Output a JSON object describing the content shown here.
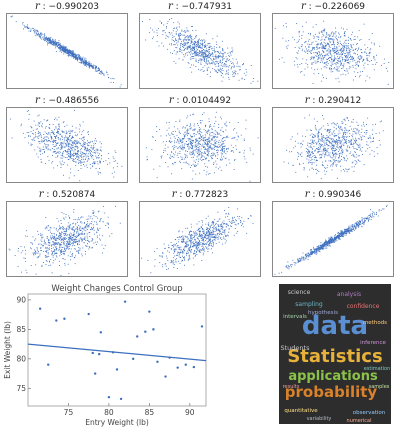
{
  "correlation_grid": {
    "label_symbol": "r",
    "label_sep": " : ",
    "panels": [
      {
        "r": "-0.990203",
        "slope": -0.99
      },
      {
        "r": "-0.747931",
        "slope": -0.75
      },
      {
        "r": "-0.226069",
        "slope": -0.23
      },
      {
        "r": "-0.486556",
        "slope": -0.49
      },
      {
        "r": "0.0104492",
        "slope": 0.01
      },
      {
        "r": "0.290412",
        "slope": 0.29
      },
      {
        "r": "0.520874",
        "slope": 0.52
      },
      {
        "r": "0.772823",
        "slope": 0.77
      },
      {
        "r": "0.990346",
        "slope": 0.99
      }
    ],
    "point_color": "#3d6fbf"
  },
  "chart_data": {
    "type": "scatter",
    "title": "Weight Changes Control Group",
    "xlabel": "Entry Weight (lb)",
    "ylabel": "Exit Weight (lb)",
    "xlim": [
      70,
      92
    ],
    "ylim": [
      72,
      91
    ],
    "xticks": [
      "75",
      "80",
      "85",
      "90"
    ],
    "yticks": [
      "75",
      "80",
      "85",
      "90"
    ],
    "points": [
      [
        71.5,
        88.5
      ],
      [
        73.5,
        86.5
      ],
      [
        74.5,
        86.8
      ],
      [
        77.5,
        87.6
      ],
      [
        78.0,
        81.0
      ],
      [
        78.3,
        77.5
      ],
      [
        78.8,
        80.8
      ],
      [
        79.0,
        84.5
      ],
      [
        80.0,
        73.5
      ],
      [
        80.5,
        81.1
      ],
      [
        81.0,
        78.2
      ],
      [
        81.5,
        73.2
      ],
      [
        82.0,
        89.7
      ],
      [
        83.0,
        80.0
      ],
      [
        83.5,
        83.8
      ],
      [
        84.5,
        84.6
      ],
      [
        85.5,
        85.0
      ],
      [
        86.0,
        79.5
      ],
      [
        87.0,
        77.0
      ],
      [
        87.5,
        80.2
      ],
      [
        88.5,
        78.5
      ],
      [
        89.5,
        79.0
      ],
      [
        90.5,
        78.6
      ],
      [
        91.5,
        85.5
      ],
      [
        85.0,
        88.0
      ],
      [
        72.5,
        79.0
      ]
    ],
    "fit_line": [
      [
        70,
        82.5
      ],
      [
        92,
        79.7
      ]
    ],
    "point_color": "#3d6fbf",
    "line_color": "#3d6fbf"
  },
  "word_cloud": {
    "background": "#2d2d2d",
    "words": [
      {
        "text": "data",
        "color": "#5b8fd4"
      },
      {
        "text": "Statistics",
        "color": "#e8b23a"
      },
      {
        "text": "applications",
        "color": "#8bc34a"
      },
      {
        "text": "probability",
        "color": "#d9822b"
      },
      {
        "text": "science",
        "color": "#c9c9c9"
      },
      {
        "text": "analysis",
        "color": "#b07cc6"
      },
      {
        "text": "sampling",
        "color": "#6bb8c7"
      },
      {
        "text": "confidence",
        "color": "#e57373"
      },
      {
        "text": "intervals",
        "color": "#a5d6a7"
      },
      {
        "text": "methods",
        "color": "#ffcc80"
      },
      {
        "text": "Students",
        "color": "#c9c9c9"
      },
      {
        "text": "observation",
        "color": "#90caf9"
      },
      {
        "text": "inference",
        "color": "#ce93d8"
      },
      {
        "text": "quantitative",
        "color": "#ffe082"
      },
      {
        "text": "estimation",
        "color": "#80cbc4"
      },
      {
        "text": "results",
        "color": "#ef9a9a"
      },
      {
        "text": "samples",
        "color": "#c5e1a5"
      },
      {
        "text": "variability",
        "color": "#b0bec5"
      },
      {
        "text": "numerical",
        "color": "#ffab91"
      },
      {
        "text": "hypothesis",
        "color": "#9fa8da"
      }
    ]
  }
}
